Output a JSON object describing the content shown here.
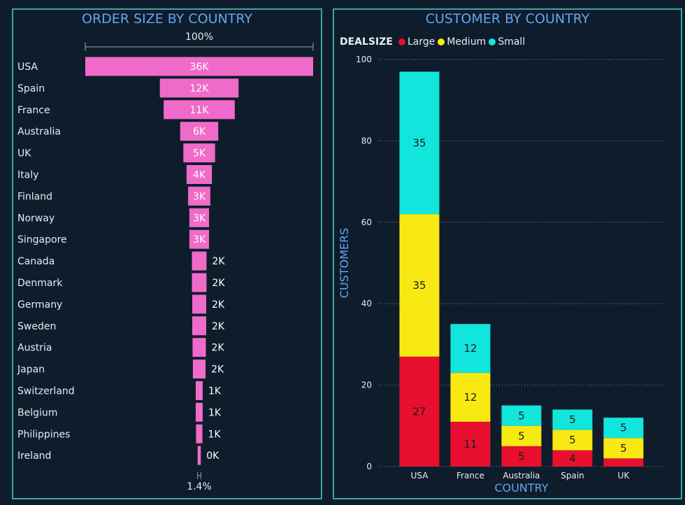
{
  "funnel_panel": {
    "title": "ORDER SIZE BY COUNTRY"
  },
  "stack_panel": {
    "title": "CUSTOMER BY COUNTRY"
  },
  "chart_data": [
    {
      "type": "bar",
      "title": "ORDER SIZE BY COUNTRY",
      "orientation": "horizontal-funnel",
      "top_label": "100%",
      "bottom_label": "1.4%",
      "bar_color": "#f06bc9",
      "categories": [
        "USA",
        "Spain",
        "France",
        "Australia",
        "UK",
        "Italy",
        "Finland",
        "Norway",
        "Singapore",
        "Canada",
        "Denmark",
        "Germany",
        "Sweden",
        "Austria",
        "Japan",
        "Switzerland",
        "Belgium",
        "Philippines",
        "Ireland"
      ],
      "values": [
        35.9,
        12.4,
        11.2,
        6.0,
        5.0,
        4.0,
        3.5,
        3.1,
        3.1,
        2.3,
        2.3,
        2.2,
        2.2,
        2.1,
        2.0,
        1.1,
        1.1,
        1.0,
        0.5
      ],
      "value_labels": [
        "36K",
        "12K",
        "11K",
        "6K",
        "5K",
        "4K",
        "3K",
        "3K",
        "3K",
        "2K",
        "2K",
        "2K",
        "2K",
        "2K",
        "2K",
        "1K",
        "1K",
        "1K",
        "0K"
      ]
    },
    {
      "type": "bar",
      "stacked": true,
      "title": "CUSTOMER BY COUNTRY",
      "xlabel": "COUNTRY",
      "ylabel": "CUSTOMERS",
      "ylim": [
        0,
        100
      ],
      "yticks": [
        0,
        20,
        40,
        60,
        80,
        100
      ],
      "grid": true,
      "legend_title": "DEALSIZE",
      "legend_position": "top-left",
      "categories": [
        "USA",
        "France",
        "Australia",
        "Spain",
        "UK"
      ],
      "series": [
        {
          "name": "Large",
          "color": "#e8102e",
          "values": [
            27,
            11,
            5,
            4,
            2
          ],
          "labels": [
            "27",
            "11",
            "5",
            "4",
            ""
          ]
        },
        {
          "name": "Medium",
          "color": "#f9e913",
          "values": [
            35,
            12,
            5,
            5,
            5
          ],
          "labels": [
            "35",
            "12",
            "5",
            "5",
            "5"
          ]
        },
        {
          "name": "Small",
          "color": "#12e6dc",
          "values": [
            35,
            12,
            5,
            5,
            5
          ],
          "labels": [
            "35",
            "12",
            "5",
            "5",
            "5"
          ]
        }
      ]
    }
  ]
}
